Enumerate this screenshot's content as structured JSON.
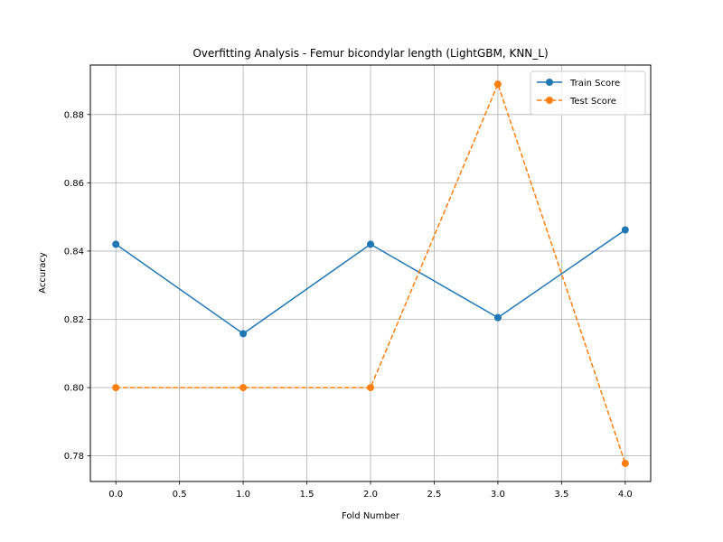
{
  "chart_data": {
    "type": "line",
    "title": "Overfitting Analysis - Femur bicondylar length (LightGBM, KNN_L)",
    "xlabel": "Fold Number",
    "ylabel": "Accuracy",
    "x": [
      0,
      1,
      2,
      3,
      4
    ],
    "xlim": [
      -0.2,
      4.2
    ],
    "ylim": [
      0.7725,
      0.8945
    ],
    "xticks": [
      "0.0",
      "0.5",
      "1.0",
      "1.5",
      "2.0",
      "2.5",
      "3.0",
      "3.5",
      "4.0"
    ],
    "yticks": [
      "0.78",
      "0.80",
      "0.82",
      "0.84",
      "0.86",
      "0.88"
    ],
    "grid": true,
    "legend_position": "top-right",
    "series": [
      {
        "name": "Train Score",
        "values": [
          0.842,
          0.8158,
          0.842,
          0.8205,
          0.8462
        ],
        "color": "#1f77b4",
        "linestyle": "solid",
        "marker": "circle"
      },
      {
        "name": "Test Score",
        "values": [
          0.8,
          0.8,
          0.8,
          0.8889,
          0.7778
        ],
        "color": "#ff7f0e",
        "linestyle": "dashed",
        "marker": "circle"
      }
    ]
  }
}
